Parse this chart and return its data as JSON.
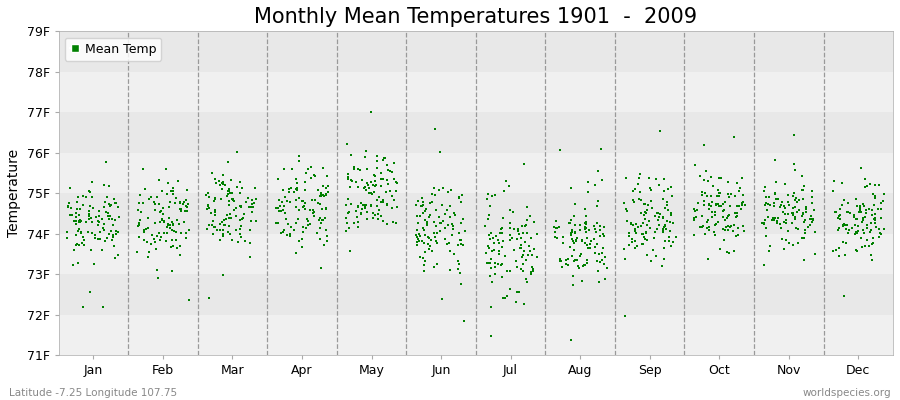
{
  "title": "Monthly Mean Temperatures 1901  -  2009",
  "ylabel": "Temperature",
  "xlabel_months": [
    "Jan",
    "Feb",
    "Mar",
    "Apr",
    "May",
    "Jun",
    "Jul",
    "Aug",
    "Sep",
    "Oct",
    "Nov",
    "Dec"
  ],
  "ytick_labels": [
    "71F",
    "72F",
    "73F",
    "74F",
    "75F",
    "76F",
    "77F",
    "78F",
    "79F"
  ],
  "ytick_values": [
    71,
    72,
    73,
    74,
    75,
    76,
    77,
    78,
    79
  ],
  "ylim": [
    71,
    79
  ],
  "years": 109,
  "dot_color": "#008000",
  "bg_color": "#ffffff",
  "plot_bg_color": "#f0f0f0",
  "legend_label": "Mean Temp",
  "bottom_left_text": "Latitude -7.25 Longitude 107.75",
  "bottom_right_text": "worldspecies.org",
  "title_fontsize": 15,
  "monthly_means": [
    74.3,
    74.3,
    74.6,
    74.7,
    75.0,
    74.1,
    73.7,
    73.8,
    74.3,
    74.5,
    74.5,
    74.4
  ],
  "monthly_stds": [
    0.45,
    0.5,
    0.45,
    0.52,
    0.55,
    0.55,
    0.6,
    0.58,
    0.48,
    0.48,
    0.48,
    0.48
  ],
  "dashed_line_color": "#999999",
  "band_colors": [
    "#f0f0f0",
    "#e8e8e8"
  ]
}
